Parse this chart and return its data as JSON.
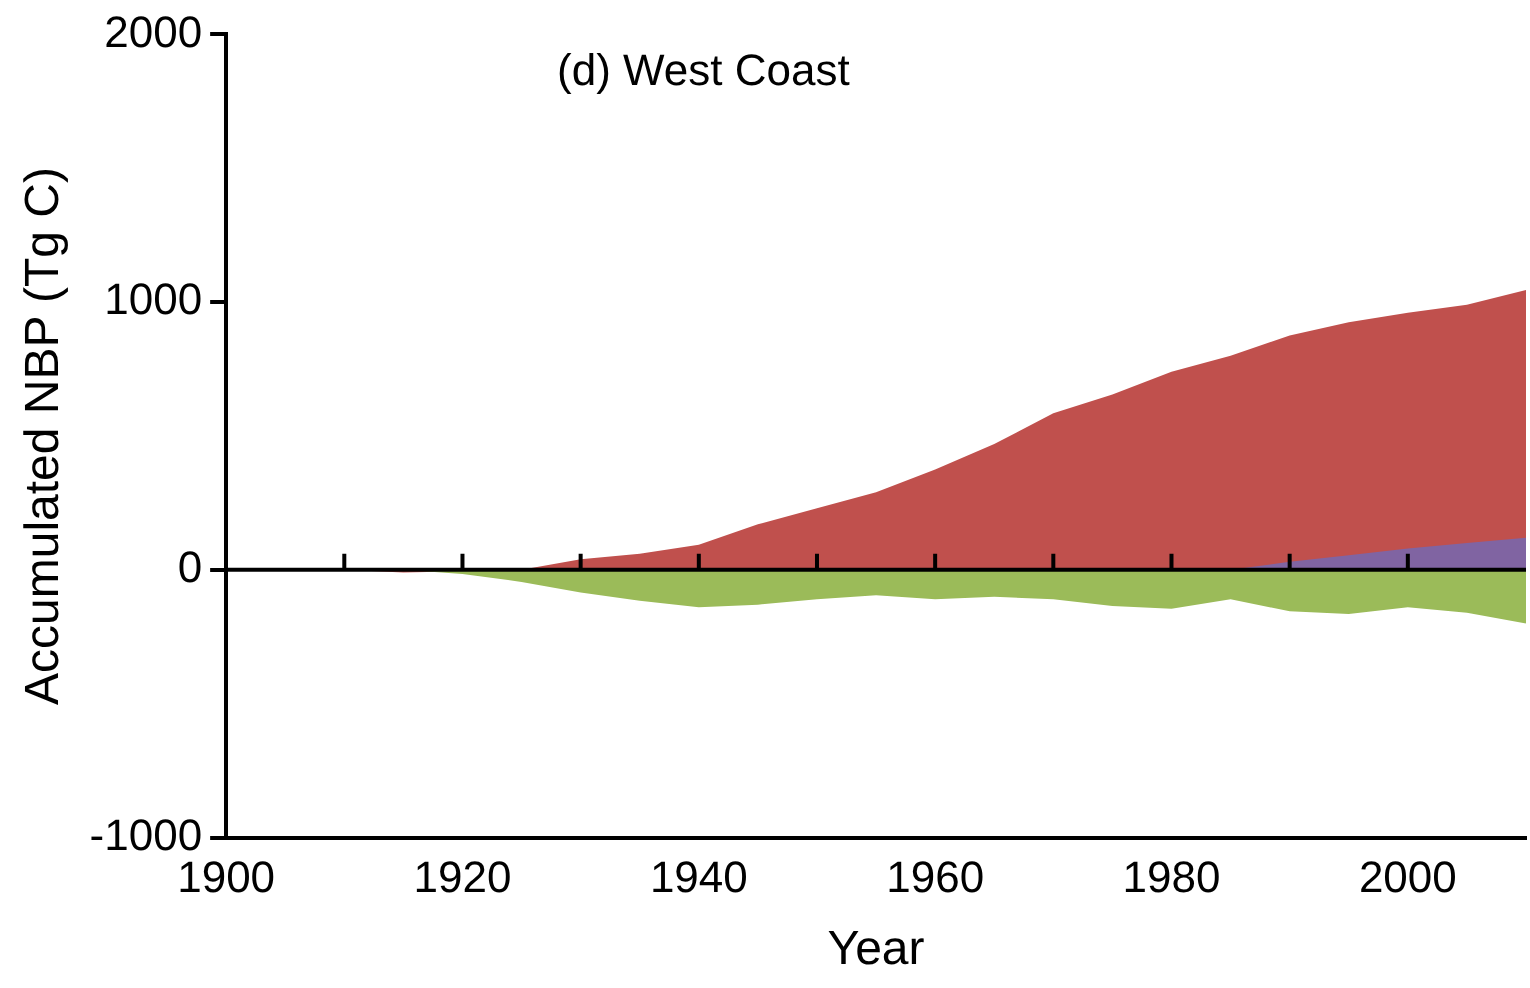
{
  "chart_data": {
    "type": "area",
    "annotations": [
      "(d) West Coast"
    ],
    "xlabel": "Year",
    "ylabel": "Accumulated NBP (Tg C)",
    "x": [
      1910,
      1915,
      1920,
      1925,
      1930,
      1935,
      1940,
      1945,
      1950,
      1955,
      1960,
      1965,
      1970,
      1975,
      1980,
      1985,
      1990,
      1995,
      2000,
      2005,
      2010
    ],
    "series": [
      {
        "color": "#c0504d",
        "values": [
          0,
          -10,
          -5,
          0,
          40,
          60,
          94,
          170,
          230,
          290,
          375,
          470,
          585,
          655,
          740,
          800,
          875,
          925,
          960,
          990,
          1045
        ]
      },
      {
        "color": "#8064a2",
        "values": [
          null,
          null,
          null,
          null,
          null,
          null,
          null,
          null,
          null,
          null,
          null,
          null,
          null,
          null,
          null,
          0,
          30,
          55,
          80,
          100,
          120
        ]
      },
      {
        "color": "#9bbb59",
        "values": [
          0,
          0,
          -15,
          -45,
          -85,
          -115,
          -140,
          -130,
          -110,
          -95,
          -110,
          -100,
          -110,
          -135,
          -145,
          -110,
          -155,
          -165,
          -140,
          -160,
          -200
        ]
      }
    ],
    "xlim": [
      1900,
      2010
    ],
    "xticks": [
      1900,
      1920,
      1940,
      1960,
      1980,
      2000
    ],
    "ylim": [
      -1000,
      2000
    ],
    "yticks": [
      -1000,
      0,
      1000,
      2000
    ],
    "ref_lines": [
      {
        "axis": "y",
        "value": 0,
        "color": "#000000"
      }
    ],
    "grid": false,
    "legend": false
  }
}
